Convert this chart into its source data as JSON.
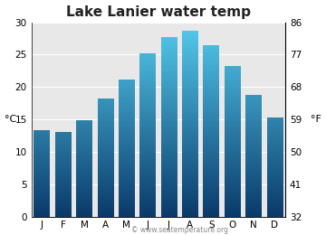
{
  "title": "Lake Lanier water temp",
  "months": [
    "J",
    "F",
    "M",
    "A",
    "M",
    "J",
    "J",
    "A",
    "S",
    "O",
    "N",
    "D"
  ],
  "values_c": [
    13.3,
    13.0,
    14.8,
    18.2,
    21.1,
    25.2,
    27.7,
    28.7,
    26.4,
    23.2,
    18.8,
    15.3
  ],
  "ylim_c": [
    0,
    30
  ],
  "yticks_c": [
    0,
    5,
    10,
    15,
    20,
    25,
    30
  ],
  "yticks_f": [
    32,
    41,
    50,
    59,
    68,
    77,
    86
  ],
  "ylabel_left": "°C",
  "ylabel_right": "°F",
  "bar_color_top": "#55ccee",
  "bar_color_bottom": "#0a3a6a",
  "plot_bg_color": "#e8e8e8",
  "fig_bg_color": "#ffffff",
  "title_fontsize": 11,
  "tick_fontsize": 7.5,
  "label_fontsize": 8,
  "bar_width": 0.75,
  "watermark": "© www.seatemperature.org"
}
